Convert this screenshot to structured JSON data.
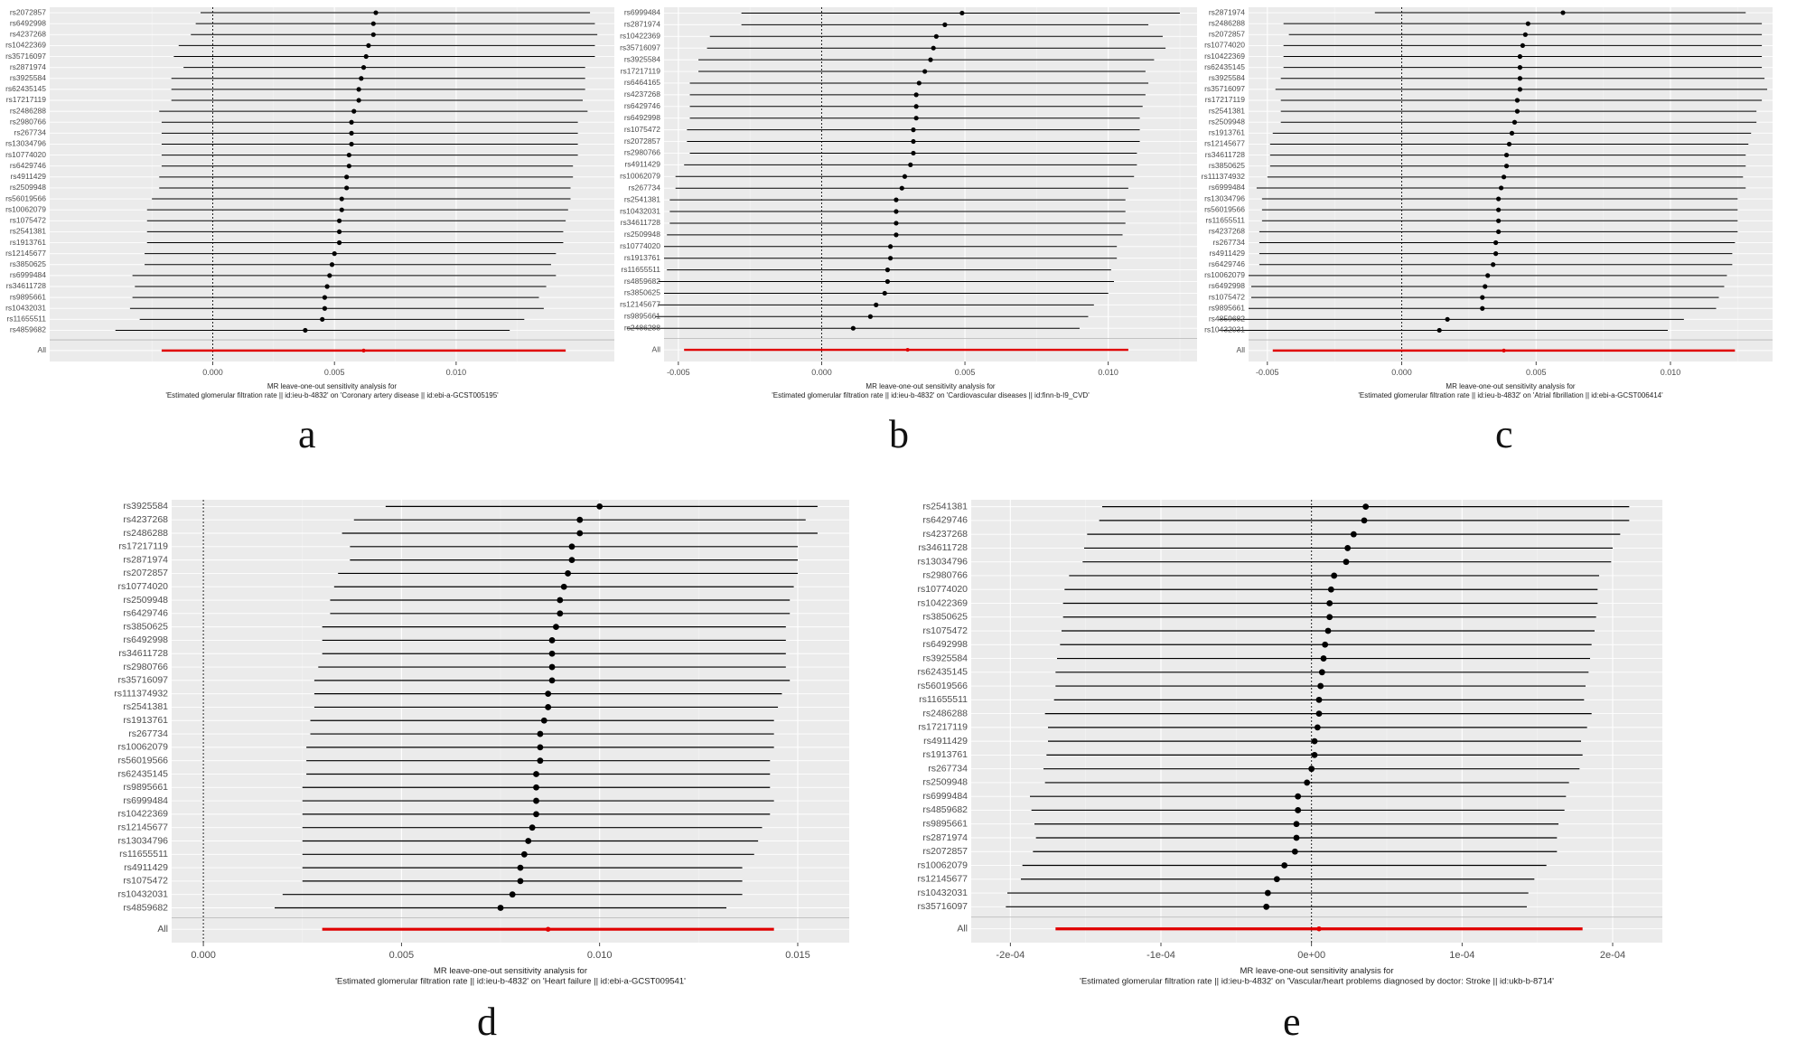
{
  "panels": [
    {
      "letter": "a",
      "xlabel_line1": "MR leave-one-out sensitivity analysis for",
      "xlabel_line2": "'Estimated glomerular filtration rate || id:ieu-b-4832' on 'Coronary artery disease || id:ebi-a-GCST005195'",
      "xticks": [
        0.0,
        0.005,
        0.01
      ],
      "tick_labels": [
        "0.000",
        "0.005",
        "0.010"
      ],
      "xlim": [
        -0.0067,
        0.0165
      ]
    },
    {
      "letter": "b",
      "xlabel_line1": "MR leave-one-out sensitivity analysis for",
      "xlabel_line2": "'Estimated glomerular filtration rate || id:ieu-b-4832' on 'Cardiovascular diseases || id:finn-b-I9_CVD'",
      "xticks": [
        -0.005,
        0.0,
        0.005,
        0.01
      ],
      "tick_labels": [
        "-0.005",
        "0.000",
        "0.005",
        "0.010"
      ],
      "xlim": [
        -0.0055,
        0.0131
      ]
    },
    {
      "letter": "c",
      "xlabel_line1": "MR leave-one-out sensitivity analysis for",
      "xlabel_line2": "'Estimated glomerular filtration rate || id:ieu-b-4832' on 'Atrial fibrillation || id:ebi-a-GCST006414'",
      "xticks": [
        -0.005,
        0.0,
        0.005,
        0.01
      ],
      "tick_labels": [
        "-0.005",
        "0.000",
        "0.005",
        "0.010"
      ],
      "xlim": [
        -0.0057,
        0.0138
      ]
    },
    {
      "letter": "d",
      "xlabel_line1": "MR leave-one-out sensitivity analysis for",
      "xlabel_line2": "'Estimated glomerular filtration rate || id:ieu-b-4832' on 'Heart failure || id:ebi-a-GCST009541'",
      "xticks": [
        0.0,
        0.005,
        0.01,
        0.015
      ],
      "tick_labels": [
        "0.000",
        "0.005",
        "0.010",
        "0.015"
      ],
      "xlim": [
        -0.0008,
        0.0163
      ]
    },
    {
      "letter": "e",
      "xlabel_line1": "MR leave-one-out sensitivity analysis for",
      "xlabel_line2": "'Estimated glomerular filtration rate || id:ieu-b-4832' on 'Vascular/heart problems diagnosed by doctor: Stroke || id:ukb-b-8714'",
      "xticks": [
        -0.0002,
        -0.0001,
        0.0,
        0.0001,
        0.0002
      ],
      "tick_labels": [
        "-2e-04",
        "-1e-04",
        "0e+00",
        "1e-04",
        "2e-04"
      ],
      "xlim": [
        -0.000226,
        0.000233
      ]
    }
  ],
  "chart_data": [
    {
      "type": "forest",
      "panel": "a",
      "categories": [
        "rs2072857",
        "rs6492998",
        "rs4237268",
        "rs10422369",
        "rs35716097",
        "rs2871974",
        "rs3925584",
        "rs62435145",
        "rs17217119",
        "rs2486288",
        "rs2980766",
        "rs267734",
        "rs13034796",
        "rs10774020",
        "rs6429746",
        "rs4911429",
        "rs2509948",
        "rs56019566",
        "rs10062079",
        "rs1075472",
        "rs2541381",
        "rs1913761",
        "rs12145677",
        "rs3850625",
        "rs6999484",
        "rs34611728",
        "rs9895661",
        "rs10432031",
        "rs11655511",
        "rs4859682",
        "All"
      ],
      "estimate": [
        0.0067,
        0.0066,
        0.0066,
        0.0064,
        0.0063,
        0.0062,
        0.0061,
        0.006,
        0.006,
        0.0058,
        0.0057,
        0.0057,
        0.0057,
        0.0056,
        0.0056,
        0.0055,
        0.0055,
        0.0053,
        0.0053,
        0.0052,
        0.0052,
        0.0052,
        0.005,
        0.0049,
        0.0048,
        0.0047,
        0.0046,
        0.0046,
        0.0045,
        0.0038,
        0.0062
      ],
      "lower": [
        -0.0005,
        -0.0007,
        -0.0009,
        -0.0014,
        -0.0016,
        -0.0012,
        -0.0017,
        -0.0017,
        -0.0017,
        -0.0022,
        -0.0021,
        -0.0021,
        -0.0021,
        -0.0021,
        -0.0021,
        -0.0022,
        -0.0022,
        -0.0025,
        -0.0027,
        -0.0027,
        -0.0027,
        -0.0027,
        -0.0028,
        -0.0028,
        -0.0033,
        -0.0032,
        -0.0033,
        -0.0034,
        -0.003,
        -0.004,
        -0.0021
      ],
      "upper": [
        0.0155,
        0.0157,
        0.0158,
        0.0157,
        0.0157,
        0.0153,
        0.0153,
        0.0153,
        0.0152,
        0.0154,
        0.015,
        0.015,
        0.015,
        0.015,
        0.0148,
        0.0148,
        0.0147,
        0.0147,
        0.0146,
        0.0145,
        0.0144,
        0.0144,
        0.0141,
        0.0139,
        0.0141,
        0.0137,
        0.0134,
        0.0136,
        0.0128,
        0.0122,
        0.0145
      ]
    },
    {
      "type": "forest",
      "panel": "b",
      "categories": [
        "rs6999484",
        "rs2871974",
        "rs10422369",
        "rs35716097",
        "rs3925584",
        "rs17217119",
        "rs6464165",
        "rs4237268",
        "rs6429746",
        "rs6492998",
        "rs1075472",
        "rs2072857",
        "rs2980766",
        "rs4911429",
        "rs10062079",
        "rs267734",
        "rs2541381",
        "rs10432031",
        "rs34611728",
        "rs2509948",
        "rs10774020",
        "rs1913761",
        "rs11655511",
        "rs4859682",
        "rs3850625",
        "rs12145677",
        "rs9895661",
        "rs2486288",
        "All"
      ],
      "estimate": [
        0.0049,
        0.0043,
        0.004,
        0.0039,
        0.0038,
        0.0036,
        0.0034,
        0.0033,
        0.0033,
        0.0033,
        0.0032,
        0.0032,
        0.0032,
        0.0031,
        0.0029,
        0.0028,
        0.0026,
        0.0026,
        0.0026,
        0.0026,
        0.0024,
        0.0024,
        0.0023,
        0.0023,
        0.0022,
        0.0019,
        0.0017,
        0.0011,
        0.003
      ],
      "lower": [
        -0.0028,
        -0.0028,
        -0.0039,
        -0.004,
        -0.0043,
        -0.0043,
        -0.0046,
        -0.0046,
        -0.0046,
        -0.0046,
        -0.0047,
        -0.0047,
        -0.0046,
        -0.0048,
        -0.0051,
        -0.0051,
        -0.0053,
        -0.0053,
        -0.0053,
        -0.0054,
        -0.0055,
        -0.0055,
        -0.0054,
        -0.0057,
        -0.0055,
        -0.0057,
        -0.0058,
        -0.0068,
        -0.0048
      ],
      "upper": [
        0.0125,
        0.0114,
        0.0119,
        0.012,
        0.0116,
        0.0113,
        0.0114,
        0.0113,
        0.0112,
        0.0111,
        0.0111,
        0.0111,
        0.011,
        0.011,
        0.0109,
        0.0107,
        0.0106,
        0.0106,
        0.0106,
        0.0105,
        0.0103,
        0.0103,
        0.0101,
        0.0102,
        0.01,
        0.0095,
        0.0093,
        0.009,
        0.0107
      ]
    },
    {
      "type": "forest",
      "panel": "c",
      "categories": [
        "rs2871974",
        "rs2486288",
        "rs2072857",
        "rs10774020",
        "rs10422369",
        "rs62435145",
        "rs3925584",
        "rs35716097",
        "rs17217119",
        "rs2541381",
        "rs2509948",
        "rs1913761",
        "rs12145677",
        "rs34611728",
        "rs3850625",
        "rs111374932",
        "rs6999484",
        "rs13034796",
        "rs56019566",
        "rs11655511",
        "rs4237268",
        "rs267734",
        "rs4911429",
        "rs6429746",
        "rs10062079",
        "rs6492998",
        "rs1075472",
        "rs9895661",
        "rs4859682",
        "rs10432031",
        "All"
      ],
      "estimate": [
        0.006,
        0.0047,
        0.0046,
        0.0045,
        0.0044,
        0.0044,
        0.0044,
        0.0044,
        0.0043,
        0.0043,
        0.0042,
        0.0041,
        0.004,
        0.0039,
        0.0039,
        0.0038,
        0.0037,
        0.0036,
        0.0036,
        0.0036,
        0.0036,
        0.0035,
        0.0035,
        0.0034,
        0.0032,
        0.0031,
        0.003,
        0.003,
        0.0017,
        0.0014,
        0.0038
      ],
      "lower": [
        -0.001,
        -0.0044,
        -0.0042,
        -0.0044,
        -0.0044,
        -0.0044,
        -0.0045,
        -0.0047,
        -0.0045,
        -0.0045,
        -0.0045,
        -0.0048,
        -0.0049,
        -0.0049,
        -0.0049,
        -0.005,
        -0.0054,
        -0.0052,
        -0.0052,
        -0.0052,
        -0.0053,
        -0.0053,
        -0.0053,
        -0.0053,
        -0.0057,
        -0.0056,
        -0.0056,
        -0.0057,
        -0.0068,
        -0.0068,
        -0.0048
      ],
      "upper": [
        0.0128,
        0.0134,
        0.0134,
        0.0134,
        0.0134,
        0.0134,
        0.0135,
        0.0136,
        0.0134,
        0.0132,
        0.0132,
        0.013,
        0.0129,
        0.0128,
        0.0128,
        0.0127,
        0.0128,
        0.0125,
        0.0125,
        0.0125,
        0.0125,
        0.0124,
        0.0123,
        0.0123,
        0.0121,
        0.012,
        0.0118,
        0.0117,
        0.0105,
        0.0099,
        0.0124
      ]
    },
    {
      "type": "forest",
      "panel": "d",
      "categories": [
        "rs3925584",
        "rs4237268",
        "rs2486288",
        "rs17217119",
        "rs2871974",
        "rs2072857",
        "rs10774020",
        "rs2509948",
        "rs6429746",
        "rs3850625",
        "rs6492998",
        "rs34611728",
        "rs2980766",
        "rs35716097",
        "rs111374932",
        "rs2541381",
        "rs1913761",
        "rs267734",
        "rs10062079",
        "rs56019566",
        "rs62435145",
        "rs9895661",
        "rs6999484",
        "rs10422369",
        "rs12145677",
        "rs13034796",
        "rs11655511",
        "rs4911429",
        "rs1075472",
        "rs10432031",
        "rs4859682",
        "All"
      ],
      "estimate": [
        0.01,
        0.0095,
        0.0095,
        0.0093,
        0.0093,
        0.0092,
        0.0091,
        0.009,
        0.009,
        0.0089,
        0.0088,
        0.0088,
        0.0088,
        0.0088,
        0.0087,
        0.0087,
        0.0086,
        0.0085,
        0.0085,
        0.0085,
        0.0084,
        0.0084,
        0.0084,
        0.0084,
        0.0083,
        0.0082,
        0.0081,
        0.008,
        0.008,
        0.0078,
        0.0075,
        0.0087
      ],
      "lower": [
        0.0046,
        0.0038,
        0.0035,
        0.0037,
        0.0037,
        0.0034,
        0.0033,
        0.0032,
        0.0032,
        0.003,
        0.003,
        0.003,
        0.0029,
        0.0028,
        0.0028,
        0.0028,
        0.0027,
        0.0027,
        0.0026,
        0.0026,
        0.0026,
        0.0025,
        0.0025,
        0.0025,
        0.0025,
        0.0025,
        0.0025,
        0.0025,
        0.0025,
        0.002,
        0.0018,
        0.003
      ],
      "upper": [
        0.0155,
        0.0152,
        0.0155,
        0.015,
        0.015,
        0.015,
        0.0149,
        0.0148,
        0.0148,
        0.0147,
        0.0147,
        0.0147,
        0.0147,
        0.0148,
        0.0146,
        0.0145,
        0.0144,
        0.0144,
        0.0144,
        0.0143,
        0.0143,
        0.0143,
        0.0144,
        0.0143,
        0.0141,
        0.014,
        0.0139,
        0.0136,
        0.0136,
        0.0136,
        0.0132,
        0.0144
      ]
    },
    {
      "type": "forest",
      "panel": "e",
      "categories": [
        "rs2541381",
        "rs6429746",
        "rs4237268",
        "rs34611728",
        "rs13034796",
        "rs2980766",
        "rs10774020",
        "rs10422369",
        "rs3850625",
        "rs1075472",
        "rs6492998",
        "rs3925584",
        "rs62435145",
        "rs56019566",
        "rs11655511",
        "rs2486288",
        "rs17217119",
        "rs4911429",
        "rs1913761",
        "rs267734",
        "rs2509948",
        "rs6999484",
        "rs4859682",
        "rs9895661",
        "rs2871974",
        "rs2072857",
        "rs10062079",
        "rs12145677",
        "rs10432031",
        "rs35716097",
        "All"
      ],
      "estimate": [
        3.6e-05,
        3.5e-05,
        2.8e-05,
        2.4e-05,
        2.3e-05,
        1.5e-05,
        1.3e-05,
        1.2e-05,
        1.2e-05,
        1.1e-05,
        9e-06,
        8e-06,
        7e-06,
        6e-06,
        5e-06,
        5e-06,
        4e-06,
        2e-06,
        2e-06,
        0.0,
        -3e-06,
        -9e-06,
        -9e-06,
        -1e-05,
        -1e-05,
        -1.1e-05,
        -1.8e-05,
        -2.3e-05,
        -2.9e-05,
        -3e-05,
        5e-06
      ],
      "lower": [
        -0.000139,
        -0.000141,
        -0.000149,
        -0.000151,
        -0.000152,
        -0.000161,
        -0.000164,
        -0.000165,
        -0.000165,
        -0.000166,
        -0.000167,
        -0.000169,
        -0.00017,
        -0.00017,
        -0.000171,
        -0.000177,
        -0.000175,
        -0.000175,
        -0.000176,
        -0.000178,
        -0.000177,
        -0.000187,
        -0.000186,
        -0.000184,
        -0.000183,
        -0.000185,
        -0.000192,
        -0.000193,
        -0.000202,
        -0.000203,
        -0.00017
      ],
      "upper": [
        0.000211,
        0.000211,
        0.000205,
        0.0002,
        0.000199,
        0.000191,
        0.00019,
        0.00019,
        0.000189,
        0.000188,
        0.000186,
        0.000185,
        0.000184,
        0.000182,
        0.000181,
        0.000186,
        0.000183,
        0.000179,
        0.00018,
        0.000178,
        0.000171,
        0.000169,
        0.000168,
        0.000164,
        0.000163,
        0.000163,
        0.000156,
        0.000148,
        0.000144,
        0.000143,
        0.00018
      ]
    }
  ],
  "colors": {
    "panel_bg": "#ebebeb",
    "grid_major": "#ffffff",
    "grid_minor": "#f5f5f5",
    "point": "#000000",
    "overall": "#e00000",
    "text": "#4d4d4d",
    "divider": "#b5b5b5"
  }
}
